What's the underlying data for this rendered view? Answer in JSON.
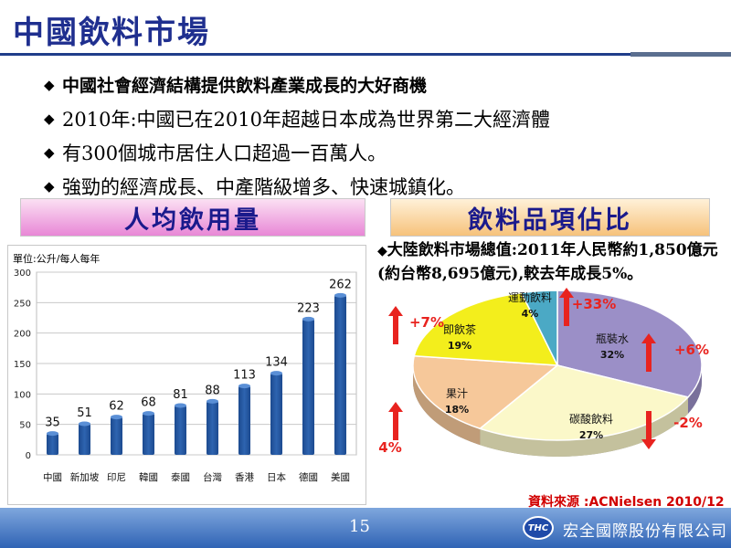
{
  "slide": {
    "title": "中國飲料市場",
    "bullets": [
      "中國社會經濟結構提供飲料產業成長的大好商機",
      "2010年:中國已在2010年超越日本成為世界第二大經濟體",
      "有300個城市居住人口超過一百萬人。",
      "強勁的經濟成長、中產階級增多、快速城鎮化。"
    ],
    "banner_left": "人均飲用量",
    "banner_right": "飲料品項佔比",
    "pie_text": "大陸飲料市場總值:2011年人民幣約1,850億元(約台幣8,695億元),較去年成長5%。",
    "source": "資料來源 :ACNielsen 2010/12",
    "page_number": "15",
    "logo_text": "THC",
    "company": "宏全國際股份有限公司"
  },
  "chart_data": [
    {
      "type": "bar",
      "title": "",
      "unit_label": "單位:公升/每人每年",
      "categories": [
        "中國",
        "新加坡",
        "印尼",
        "韓國",
        "泰國",
        "台灣",
        "香港",
        "日本",
        "德國",
        "美國"
      ],
      "values": [
        35,
        51,
        62,
        68,
        81,
        88,
        113,
        134,
        223,
        262
      ],
      "ylim": [
        0,
        300
      ],
      "yticks": [
        0,
        50,
        100,
        150,
        200,
        250,
        300
      ],
      "grid": true,
      "bar_color": "#2e64b0"
    },
    {
      "type": "pie",
      "title": "",
      "slices": [
        {
          "label": "瓶裝水",
          "value": 32,
          "pct": "32%",
          "color": "#9b8fc7",
          "change": "+6%",
          "dir": "up"
        },
        {
          "label": "碳酸飲料",
          "value": 27,
          "pct": "27%",
          "color": "#fbf8c9",
          "change": "-2%",
          "dir": "down"
        },
        {
          "label": "果汁",
          "value": 18,
          "pct": "18%",
          "color": "#f6c89a",
          "change": "4%",
          "dir": "up"
        },
        {
          "label": "即飲茶",
          "value": 19,
          "pct": "19%",
          "color": "#f3ee1c",
          "change": "+7%",
          "dir": "up"
        },
        {
          "label": "運動飲料",
          "value": 4,
          "pct": "4%",
          "color": "#4ba9c5",
          "change": "+33%",
          "dir": "up"
        }
      ]
    }
  ]
}
